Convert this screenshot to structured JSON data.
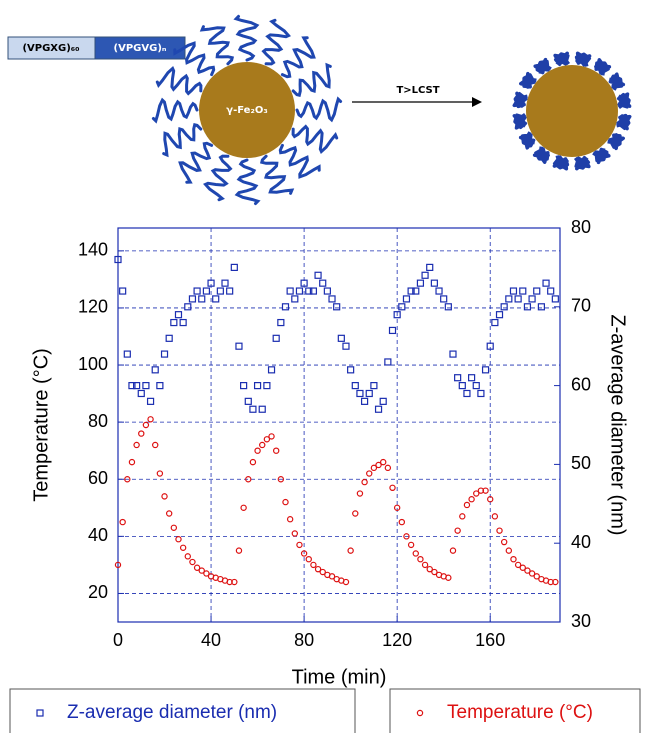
{
  "diagram": {
    "block_1": "(VPGXG)₆₀",
    "block_2": "(VPGVG)ₙ",
    "core": "γ-Fe₂O₃",
    "arrow_label": "T>LCST"
  },
  "chart_data": {
    "type": "scatter",
    "x_label": "Time (min)",
    "y_label": "Temperature (°C)",
    "y2_label": "Z-average diameter (nm)",
    "xlim": [
      0,
      190
    ],
    "xticks": [
      0,
      40,
      80,
      120,
      160
    ],
    "ylim": [
      10,
      148
    ],
    "yticks": [
      20,
      40,
      60,
      80,
      100,
      120,
      140
    ],
    "y2lim": [
      30,
      80
    ],
    "y2ticks": [
      30,
      40,
      50,
      60,
      70,
      80
    ],
    "grid": true,
    "x": [
      0,
      2,
      4,
      6,
      8,
      10,
      12,
      14,
      16,
      18,
      20,
      22,
      24,
      26,
      28,
      30,
      32,
      34,
      36,
      38,
      40,
      42,
      44,
      46,
      48,
      50,
      52,
      54,
      56,
      58,
      60,
      62,
      64,
      66,
      68,
      70,
      72,
      74,
      76,
      78,
      80,
      82,
      84,
      86,
      88,
      90,
      92,
      94,
      96,
      98,
      100,
      102,
      104,
      106,
      108,
      110,
      112,
      114,
      116,
      118,
      120,
      122,
      124,
      126,
      128,
      130,
      132,
      134,
      136,
      138,
      140,
      142,
      144,
      146,
      148,
      150,
      152,
      154,
      156,
      158,
      160,
      162,
      164,
      166,
      168,
      170,
      172,
      174,
      176,
      178,
      180,
      182,
      184,
      186,
      188
    ],
    "series": [
      {
        "name": "Z-average diameter (nm)",
        "color": "#1a2db0",
        "marker": "square",
        "axis": "y2",
        "values": [
          76,
          72,
          64,
          60,
          60,
          59,
          60,
          58,
          62,
          60,
          64,
          66,
          68,
          69,
          68,
          70,
          71,
          72,
          71,
          72,
          73,
          71,
          72,
          73,
          72,
          75,
          65,
          60,
          58,
          57,
          60,
          57,
          60,
          62,
          66,
          68,
          70,
          72,
          71,
          72,
          73,
          72,
          72,
          74,
          73,
          72,
          71,
          70,
          66,
          65,
          62,
          60,
          59,
          58,
          59,
          60,
          57,
          58,
          63,
          67,
          69,
          70,
          71,
          72,
          72,
          73,
          74,
          75,
          73,
          72,
          71,
          70,
          64,
          61,
          60,
          59,
          61,
          60,
          59,
          62,
          65,
          68,
          69,
          70,
          71,
          72,
          71,
          72,
          70,
          71,
          72,
          70,
          73,
          72,
          71
        ]
      },
      {
        "name": "Temperature (°C)",
        "color": "#dd1111",
        "marker": "circle",
        "values": [
          30,
          45,
          60,
          66,
          72,
          76,
          79,
          81,
          72,
          62,
          54,
          48,
          43,
          39,
          36,
          33,
          31,
          29,
          28,
          27,
          26,
          25.5,
          25,
          24.5,
          24,
          24,
          35,
          50,
          60,
          66,
          70,
          72,
          74,
          75,
          70,
          60,
          52,
          46,
          41,
          37,
          34,
          32,
          30,
          28.5,
          27.5,
          26.5,
          26,
          25,
          24.5,
          24,
          35,
          48,
          55,
          59,
          62,
          64,
          65,
          66,
          64,
          57,
          50,
          45,
          40,
          37,
          34,
          32,
          30,
          28.5,
          27.5,
          26.5,
          26,
          25.5,
          35,
          42,
          47,
          51,
          53,
          55,
          56,
          56,
          53,
          47,
          42,
          38,
          35,
          32,
          30,
          29,
          28,
          27,
          26,
          25,
          24.5,
          24,
          24
        ]
      }
    ]
  }
}
